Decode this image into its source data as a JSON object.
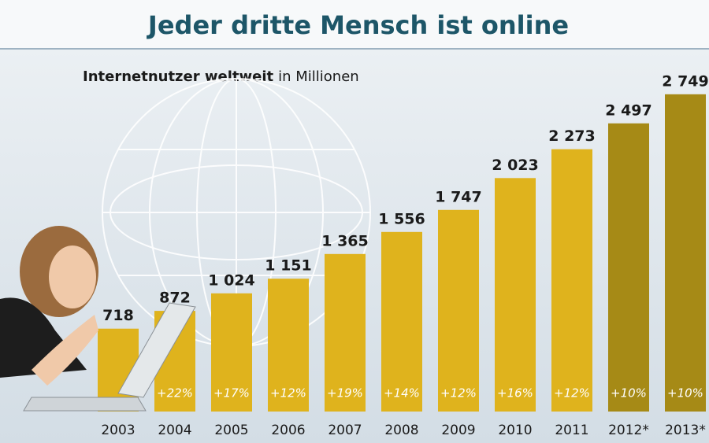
{
  "chart_data": {
    "type": "bar",
    "title": "Jeder dritte Mensch ist online",
    "subtitle": "Internetnutzer weltweit",
    "unit": "in Millionen",
    "categories": [
      "2003",
      "2004",
      "2005",
      "2006",
      "2007",
      "2008",
      "2009",
      "2010",
      "2011",
      "2012*",
      "2013*"
    ],
    "values": [
      718,
      872,
      1024,
      1151,
      1365,
      1556,
      1747,
      2023,
      2273,
      2497,
      2749
    ],
    "value_labels": [
      "718",
      "872",
      "1 024",
      "1 151",
      "1 365",
      "1 556",
      "1 747",
      "2 023",
      "2 273",
      "2 497",
      "2 749"
    ],
    "growth_labels": [
      null,
      "+22%",
      "+17%",
      "+12%",
      "+19%",
      "+14%",
      "+12%",
      "+16%",
      "+12%",
      "+10%",
      "+10%"
    ],
    "colors": [
      "#dfb31d",
      "#dfb31d",
      "#dfb31d",
      "#dfb31d",
      "#dfb31d",
      "#dfb31d",
      "#dfb31d",
      "#dfb31d",
      "#dfb31d",
      "#a68a16",
      "#a68a16"
    ],
    "ylim": [
      0,
      3000
    ]
  }
}
